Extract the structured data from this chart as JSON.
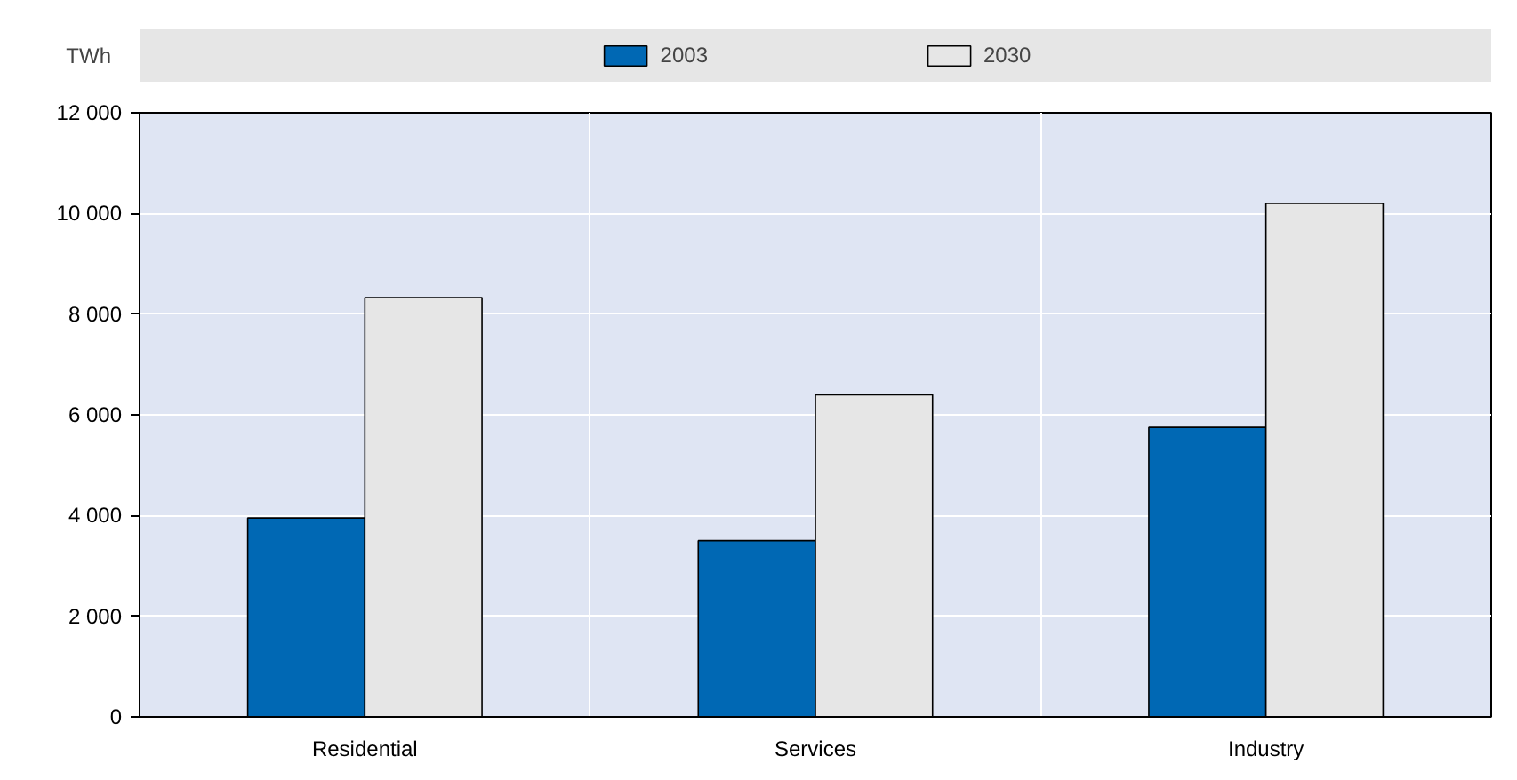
{
  "chart_data": {
    "type": "bar",
    "ylabel": "TWh",
    "categories": [
      "Residential",
      "Services",
      "Industry"
    ],
    "series": [
      {
        "name": "2003",
        "color": "#0068b4",
        "values": [
          3950,
          3500,
          5750
        ]
      },
      {
        "name": "2030",
        "color": "#e6e6e6",
        "values": [
          8330,
          6400,
          10200
        ]
      }
    ],
    "ylim": [
      0,
      12000
    ],
    "yticks": [
      0,
      {
        "value": 2000,
        "label": "2 000"
      },
      {
        "value": 4000,
        "label": "4 000"
      },
      {
        "value": 6000,
        "label": "6 000"
      },
      {
        "value": 8000,
        "label": "8 000"
      },
      {
        "value": 10000,
        "label": "10 000"
      },
      {
        "value": 12000,
        "label": "12 000"
      }
    ],
    "grid": true,
    "legend": "top"
  }
}
